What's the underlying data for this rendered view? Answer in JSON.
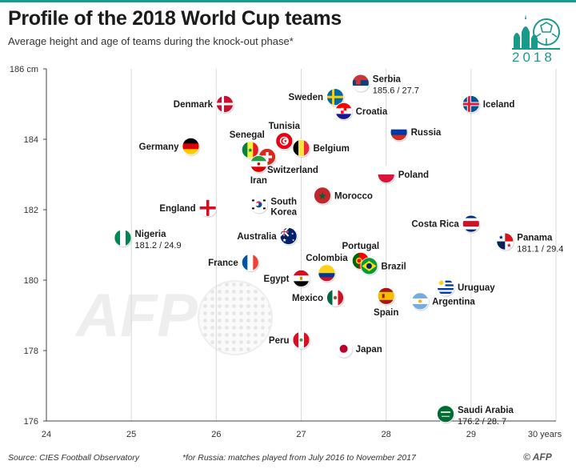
{
  "header": {
    "title": "Profile of the 2018 World Cup teams",
    "subtitle": "Average height and age of teams during the knock-out phase*"
  },
  "logo": {
    "year": "2018",
    "accent_color": "#1a9a8a",
    "icon": "world-cup-kremlin-ball-icon"
  },
  "watermark": {
    "text": "AFP",
    "icon": "golf-ball-watermark-icon"
  },
  "footer": {
    "source": "Source: CIES Football Observatory",
    "footnote": "*for Russia: matches played from July 2016 to November 2017",
    "credit": "© AFP"
  },
  "chart_data": {
    "type": "scatter",
    "title": "Profile of the 2018 World Cup teams",
    "subtitle": "Average height and age of teams during the knock-out phase*",
    "xlabel": "",
    "ylabel": "",
    "xlim": [
      24,
      30
    ],
    "ylim": [
      176,
      186
    ],
    "x_ticks": [
      24,
      25,
      26,
      27,
      28,
      29,
      30
    ],
    "x_tick_labels": [
      "24",
      "25",
      "26",
      "27",
      "28",
      "29",
      "30 years"
    ],
    "y_ticks": [
      176,
      178,
      180,
      182,
      184,
      186
    ],
    "y_tick_labels": [
      "176",
      "178",
      "180",
      "182",
      "184",
      "186 cm"
    ],
    "grid": "vertical",
    "x_unit": "years",
    "y_unit": "cm",
    "points": [
      {
        "team": "Serbia",
        "age": 27.7,
        "height": 185.6,
        "value_label": "185.6 / 27.7",
        "flag": "serbia",
        "label_pos": "right"
      },
      {
        "team": "Denmark",
        "age": 26.1,
        "height": 185.0,
        "flag": "denmark",
        "label_pos": "left"
      },
      {
        "team": "Iceland",
        "age": 29.0,
        "height": 185.0,
        "flag": "iceland",
        "label_pos": "right"
      },
      {
        "team": "Sweden",
        "age": 27.4,
        "height": 185.2,
        "flag": "sweden",
        "label_pos": "left"
      },
      {
        "team": "Croatia",
        "age": 27.5,
        "height": 184.8,
        "flag": "croatia",
        "label_pos": "right"
      },
      {
        "team": "Russia",
        "age": 28.15,
        "height": 184.2,
        "flag": "russia",
        "label_pos": "right"
      },
      {
        "team": "Tunisia",
        "age": 26.8,
        "height": 183.95,
        "flag": "tunisia",
        "label_pos": "top"
      },
      {
        "team": "Senegal",
        "age": 26.4,
        "height": 183.7,
        "flag": "senegal",
        "label_pos": "top-left"
      },
      {
        "team": "Germany",
        "age": 25.7,
        "height": 183.8,
        "flag": "germany",
        "label_pos": "left"
      },
      {
        "team": "Belgium",
        "age": 27.0,
        "height": 183.75,
        "flag": "belgium",
        "label_pos": "right"
      },
      {
        "team": "Switzerland",
        "age": 26.6,
        "height": 183.5,
        "flag": "switzerland",
        "label_pos": "bottom-right"
      },
      {
        "team": "Iran",
        "age": 26.5,
        "height": 183.3,
        "flag": "iran",
        "label_pos": "bottom"
      },
      {
        "team": "Poland",
        "age": 28.0,
        "height": 183.0,
        "flag": "poland",
        "label_pos": "right"
      },
      {
        "team": "Morocco",
        "age": 27.25,
        "height": 182.4,
        "flag": "morocco",
        "label_pos": "right"
      },
      {
        "team": "South Korea",
        "age": 26.5,
        "height": 182.15,
        "flag": "south-korea",
        "label_pos": "right"
      },
      {
        "team": "England",
        "age": 25.9,
        "height": 182.05,
        "flag": "england",
        "label_pos": "left"
      },
      {
        "team": "Nigeria",
        "age": 24.9,
        "height": 181.2,
        "value_label": "181.2 / 24.9",
        "flag": "nigeria",
        "label_pos": "right"
      },
      {
        "team": "Costa Rica",
        "age": 29.0,
        "height": 181.6,
        "flag": "costa-rica",
        "label_pos": "left"
      },
      {
        "team": "Panama",
        "age": 29.4,
        "height": 181.1,
        "value_label": "181.1 / 29.4",
        "flag": "panama",
        "label_pos": "right"
      },
      {
        "team": "Australia",
        "age": 26.85,
        "height": 181.25,
        "flag": "australia",
        "label_pos": "left"
      },
      {
        "team": "France",
        "age": 26.4,
        "height": 180.5,
        "flag": "france",
        "label_pos": "left"
      },
      {
        "team": "Portugal",
        "age": 27.7,
        "height": 180.55,
        "flag": "portugal",
        "label_pos": "top"
      },
      {
        "team": "Brazil",
        "age": 27.8,
        "height": 180.4,
        "flag": "brazil",
        "label_pos": "right"
      },
      {
        "team": "Colombia",
        "age": 27.3,
        "height": 180.2,
        "flag": "colombia",
        "label_pos": "top"
      },
      {
        "team": "Egypt",
        "age": 27.0,
        "height": 180.05,
        "flag": "egypt",
        "label_pos": "left"
      },
      {
        "team": "Uruguay",
        "age": 28.7,
        "height": 179.8,
        "flag": "uruguay",
        "label_pos": "right"
      },
      {
        "team": "Mexico",
        "age": 27.4,
        "height": 179.5,
        "flag": "mexico",
        "label_pos": "left"
      },
      {
        "team": "Spain",
        "age": 28.0,
        "height": 179.55,
        "flag": "spain",
        "label_pos": "bottom"
      },
      {
        "team": "Argentina",
        "age": 28.4,
        "height": 179.4,
        "flag": "argentina",
        "label_pos": "right"
      },
      {
        "team": "Peru",
        "age": 27.0,
        "height": 178.3,
        "flag": "peru",
        "label_pos": "left"
      },
      {
        "team": "Japan",
        "age": 27.5,
        "height": 178.05,
        "flag": "japan",
        "label_pos": "right"
      },
      {
        "team": "Saudi Arabia",
        "age": 28.7,
        "height": 176.2,
        "value_label": "176.2 / 28. 7",
        "flag": "saudi-arabia",
        "label_pos": "right"
      }
    ]
  }
}
